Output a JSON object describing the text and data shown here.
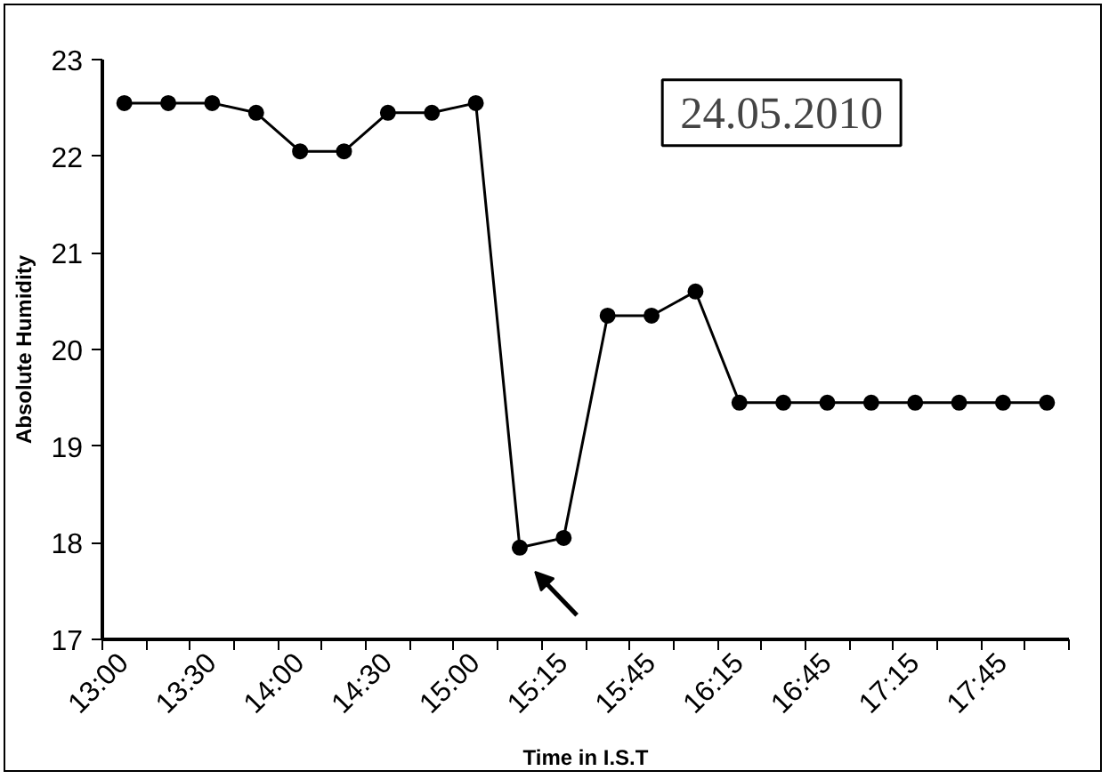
{
  "chart_data": {
    "type": "line",
    "xlabel": "Time in I.S.T",
    "ylabel": "Absolute Humidity",
    "categories": [
      "13:00",
      null,
      "13:30",
      null,
      "14:00",
      null,
      "14:30",
      null,
      "15:00",
      null,
      "15:15",
      null,
      "15:45",
      null,
      "16:15",
      null,
      "16:45",
      null,
      "17:15",
      null,
      "17:45",
      null
    ],
    "series": [
      {
        "color": "#000000",
        "values": [
          22.55,
          22.55,
          22.55,
          22.45,
          22.05,
          22.05,
          22.45,
          22.45,
          22.55,
          17.95,
          18.05,
          20.35,
          20.35,
          20.6,
          19.45,
          19.45,
          19.45,
          19.45,
          19.45,
          19.45,
          19.45,
          19.45
        ]
      }
    ],
    "ylim": [
      17,
      23
    ],
    "yticks": [
      17,
      18,
      19,
      20,
      21,
      22,
      23
    ],
    "annotations": [
      "24.05.2010"
    ],
    "marker": "circle",
    "line_style": "solid",
    "grid": false
  }
}
